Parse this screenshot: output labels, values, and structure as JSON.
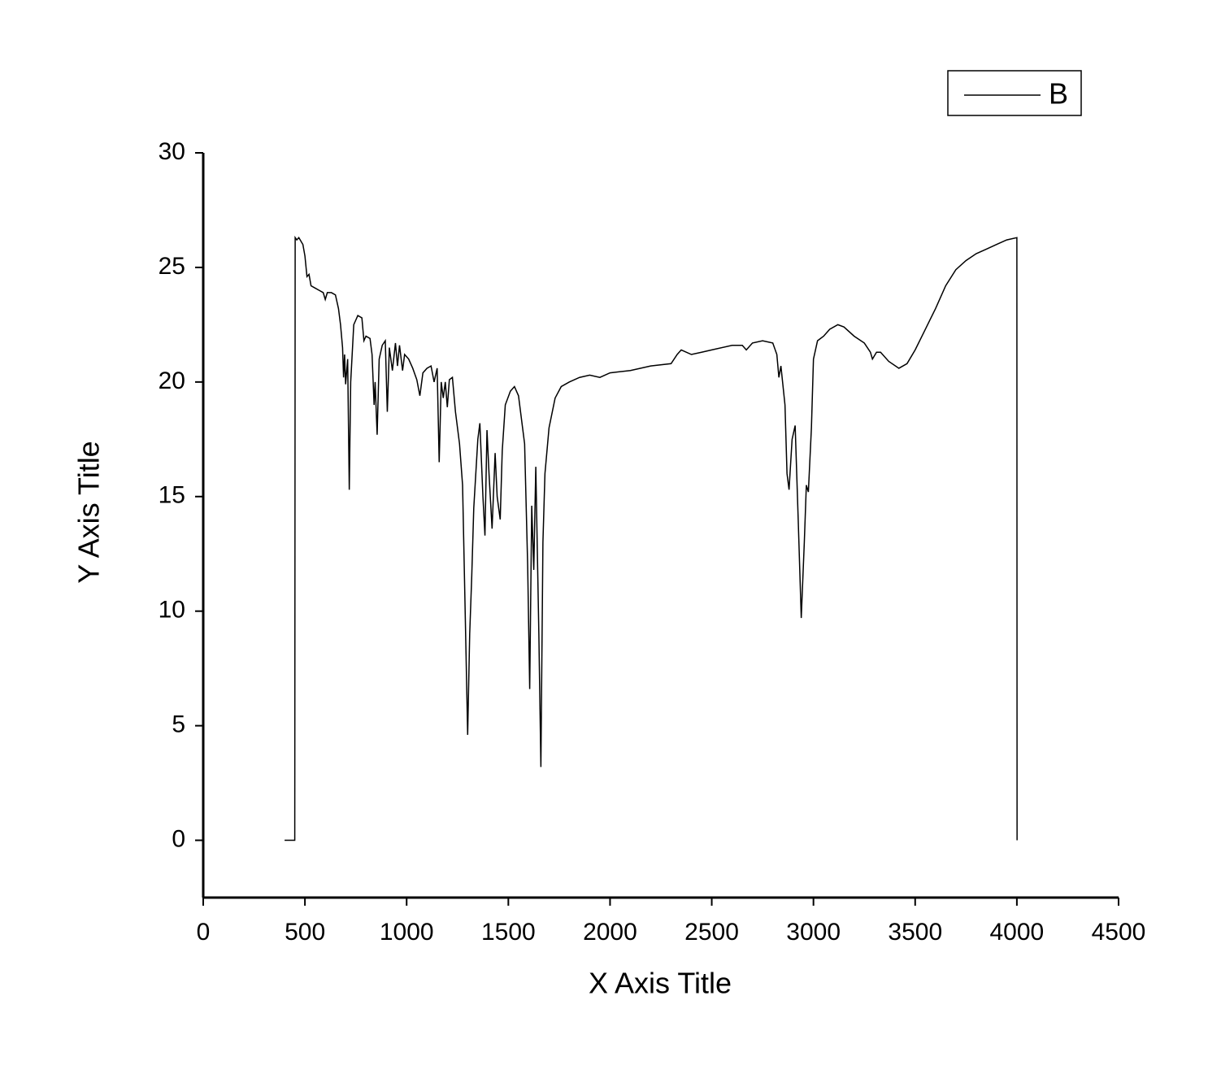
{
  "chart_data": {
    "type": "line",
    "x_label": "X Axis Title",
    "y_label": "Y Axis Title",
    "xlim": [
      0,
      4500
    ],
    "xticks": [
      0,
      500,
      1000,
      1500,
      2000,
      2500,
      3000,
      3500,
      4000,
      4500
    ],
    "ylim": [
      -2.5,
      30
    ],
    "yticks": [
      0,
      5,
      10,
      15,
      20,
      25,
      30
    ],
    "grid": false,
    "legend": "top-right",
    "x": [
      400,
      450,
      452,
      460,
      470,
      490,
      500,
      510,
      520,
      530,
      550,
      570,
      590,
      600,
      610,
      630,
      650,
      665,
      675,
      685,
      690,
      695,
      700,
      710,
      718,
      725,
      740,
      760,
      780,
      790,
      800,
      820,
      830,
      840,
      845,
      855,
      865,
      880,
      895,
      905,
      915,
      930,
      945,
      955,
      965,
      980,
      990,
      1010,
      1030,
      1050,
      1065,
      1080,
      1100,
      1120,
      1135,
      1150,
      1160,
      1170,
      1180,
      1190,
      1200,
      1210,
      1225,
      1240,
      1260,
      1275,
      1290,
      1300,
      1310,
      1320,
      1330,
      1350,
      1360,
      1375,
      1385,
      1395,
      1405,
      1420,
      1435,
      1445,
      1460,
      1470,
      1485,
      1510,
      1530,
      1550,
      1570,
      1580,
      1595,
      1605,
      1615,
      1625,
      1635,
      1650,
      1660,
      1670,
      1680,
      1700,
      1730,
      1760,
      1800,
      1850,
      1900,
      1950,
      2000,
      2100,
      2200,
      2300,
      2330,
      2350,
      2400,
      2450,
      2500,
      2600,
      2650,
      2670,
      2700,
      2750,
      2800,
      2820,
      2830,
      2840,
      2860,
      2870,
      2880,
      2895,
      2910,
      2925,
      2940,
      2955,
      2965,
      2975,
      2990,
      3000,
      3020,
      3050,
      3080,
      3120,
      3150,
      3200,
      3250,
      3280,
      3290,
      3310,
      3330,
      3370,
      3420,
      3460,
      3500,
      3550,
      3600,
      3650,
      3700,
      3750,
      3800,
      3850,
      3900,
      3950,
      4000,
      4001
    ],
    "series": [
      {
        "name": "B",
        "color": "#000000",
        "values": [
          0,
          0,
          26.3,
          26.2,
          26.3,
          26.0,
          25.5,
          24.6,
          24.7,
          24.2,
          24.1,
          24.0,
          23.9,
          23.6,
          23.9,
          23.9,
          23.8,
          23.2,
          22.5,
          21.5,
          20.2,
          21.2,
          19.9,
          21.0,
          15.3,
          20.0,
          22.5,
          22.9,
          22.8,
          21.8,
          22.0,
          21.9,
          21.2,
          19.0,
          20.0,
          17.7,
          21.0,
          21.6,
          21.8,
          18.7,
          21.5,
          20.5,
          21.7,
          20.7,
          21.6,
          20.5,
          21.2,
          21.0,
          20.6,
          20.1,
          19.4,
          20.4,
          20.6,
          20.7,
          20.0,
          20.6,
          16.5,
          20.0,
          19.3,
          20.0,
          18.9,
          20.1,
          20.2,
          18.7,
          17.3,
          15.5,
          9.0,
          4.6,
          9.0,
          11.5,
          14.5,
          17.5,
          18.2,
          15.0,
          13.3,
          17.9,
          16.0,
          13.6,
          16.9,
          15.0,
          14.0,
          17.0,
          19.0,
          19.6,
          19.8,
          19.4,
          18.0,
          17.3,
          12.0,
          6.6,
          14.6,
          11.8,
          16.3,
          9.0,
          3.2,
          13.0,
          16.0,
          18.0,
          19.3,
          19.8,
          20.0,
          20.2,
          20.3,
          20.2,
          20.4,
          20.5,
          20.7,
          20.8,
          21.2,
          21.4,
          21.2,
          21.3,
          21.4,
          21.6,
          21.6,
          21.4,
          21.7,
          21.8,
          21.7,
          21.2,
          20.2,
          20.7,
          19.0,
          16.0,
          15.3,
          17.5,
          18.1,
          14.0,
          9.7,
          13.0,
          15.5,
          15.2,
          18.0,
          21.0,
          21.8,
          22.0,
          22.3,
          22.5,
          22.4,
          22.0,
          21.7,
          21.3,
          21.0,
          21.3,
          21.3,
          20.9,
          20.6,
          20.8,
          21.4,
          22.3,
          23.2,
          24.2,
          24.9,
          25.3,
          25.6,
          25.8,
          26.0,
          26.2,
          26.3,
          0
        ]
      }
    ]
  }
}
